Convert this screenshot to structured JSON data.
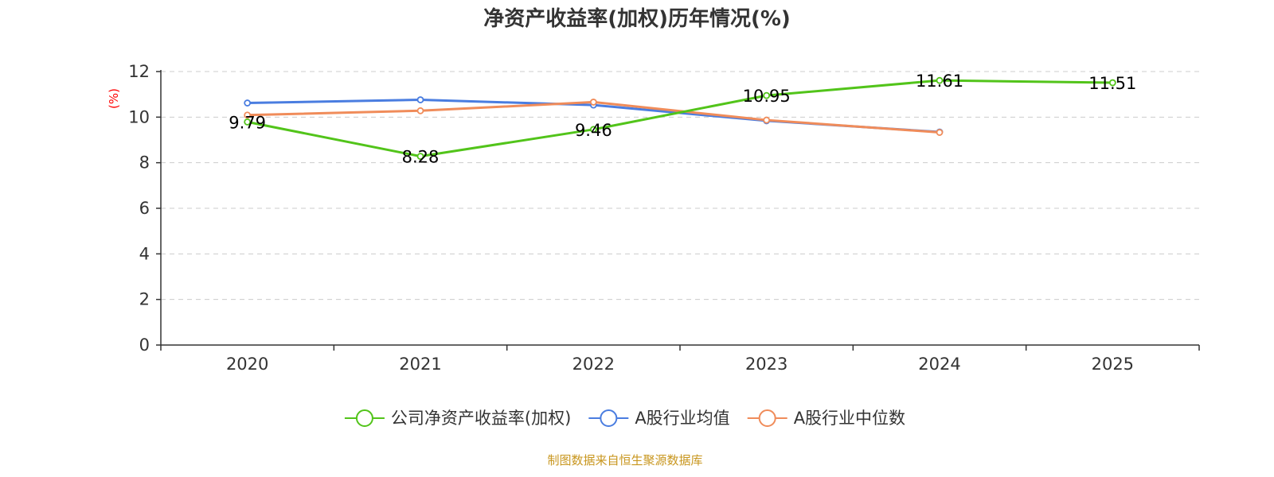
{
  "chart_data": {
    "type": "line",
    "title": "净资产收益率(加权)历年情况(%)",
    "ylabel": "(%)",
    "xlabel": "",
    "categories": [
      "2020",
      "2021",
      "2022",
      "2023",
      "2024",
      "2025"
    ],
    "ylim": [
      0,
      12
    ],
    "yticks": [
      "0",
      "2",
      "4",
      "6",
      "8",
      "10",
      "12"
    ],
    "grid": true,
    "legend_position": "bottom",
    "series": [
      {
        "name": "公司净资产收益率(加权)",
        "color": "#52c41a",
        "values": [
          9.79,
          8.28,
          9.46,
          10.95,
          11.61,
          11.51
        ],
        "labels": [
          "9.79",
          "8.28",
          "9.46",
          "10.95",
          "11.61",
          "11.51"
        ]
      },
      {
        "name": "A股行业均值",
        "color": "#4a7de0",
        "values": [
          10.62,
          10.76,
          10.53,
          9.84,
          9.35,
          null
        ]
      },
      {
        "name": "A股行业中位数",
        "color": "#f08c5a",
        "values": [
          10.09,
          10.28,
          10.66,
          9.87,
          9.33,
          null
        ]
      }
    ],
    "source": "制图数据来自恒生聚源数据库"
  },
  "colors": {
    "unit_label": "#ff0000",
    "source_text": "#c8961e",
    "axis": "#333333",
    "grid": "#cccccc"
  }
}
